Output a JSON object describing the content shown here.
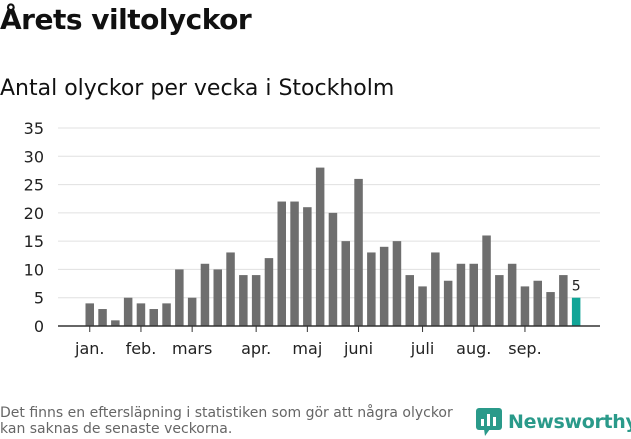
{
  "header": {
    "title": "Årets viltolyckor",
    "subtitle": "Antal olyckor per vecka i Stockholm"
  },
  "footer": {
    "note": "Det finns en eftersläpning i statistiken som gör att några olyckor kan saknas de senaste veckorna.",
    "logo_text": "Newsworthy",
    "logo_icon": "newsworthy-logo-icon"
  },
  "colors": {
    "bar": "#6e6e6e",
    "highlight": "#11a597",
    "grid": "#e0e0e0",
    "axis": "#333333"
  },
  "chart_data": {
    "type": "bar",
    "title": "Antal olyckor per vecka i Stockholm",
    "xlabel": "",
    "ylabel": "",
    "ylim": [
      0,
      35
    ],
    "yticks": [
      0,
      5,
      10,
      15,
      20,
      25,
      30,
      35
    ],
    "grid": true,
    "values": [
      4,
      3,
      1,
      5,
      4,
      3,
      4,
      10,
      5,
      11,
      10,
      13,
      9,
      9,
      12,
      22,
      22,
      21,
      28,
      20,
      15,
      26,
      13,
      14,
      15,
      9,
      7,
      13,
      8,
      11,
      11,
      16,
      9,
      11,
      7,
      8,
      6,
      9,
      5
    ],
    "highlight_index": 38,
    "highlight_label": "5",
    "month_labels": [
      {
        "label": "jan.",
        "bar_index": 0
      },
      {
        "label": "feb.",
        "bar_index": 4
      },
      {
        "label": "mars",
        "bar_index": 8
      },
      {
        "label": "apr.",
        "bar_index": 13
      },
      {
        "label": "maj",
        "bar_index": 17
      },
      {
        "label": "juni",
        "bar_index": 21
      },
      {
        "label": "juli",
        "bar_index": 26
      },
      {
        "label": "aug.",
        "bar_index": 30
      },
      {
        "label": "sep.",
        "bar_index": 34
      }
    ]
  }
}
